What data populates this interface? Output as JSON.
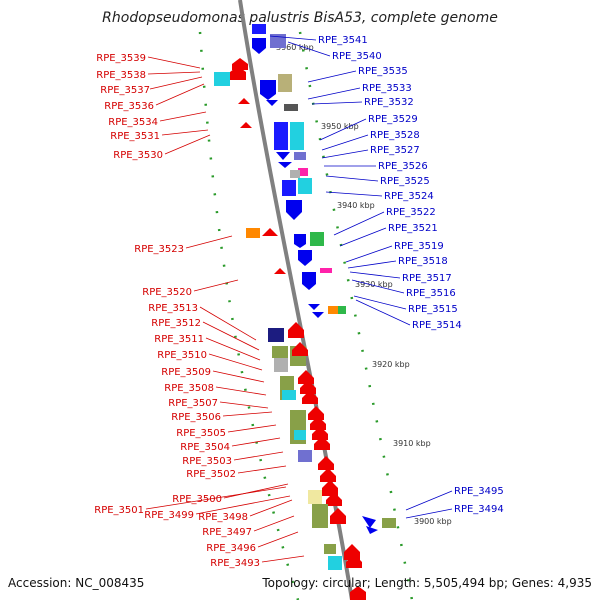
{
  "title": "Rhodopseudomonas palustris BisA53, complete genome",
  "footer": {
    "accession": "Accession: NC_008435",
    "summary": "Topology: circular; Length: 5,505,494 bp; Genes: 4,935"
  },
  "colors": {
    "reverse_strand_label": "#d40000",
    "forward_strand_label": "#0000c8",
    "backbone": "#888888"
  },
  "scale_marks": [
    "3960 kbp",
    "3950 kbp",
    "3940 kbp",
    "3930 kbp",
    "3920 kbp",
    "3910 kbp",
    "3900 kbp"
  ],
  "left_genes": [
    "RPE_3539",
    "RPE_3538",
    "RPE_3537",
    "RPE_3536",
    "RPE_3534",
    "RPE_3531",
    "RPE_3530",
    "RPE_3523",
    "RPE_3520",
    "RPE_3513",
    "RPE_3512",
    "RPE_3511",
    "RPE_3510",
    "RPE_3509",
    "RPE_3508",
    "RPE_3507",
    "RPE_3506",
    "RPE_3505",
    "RPE_3504",
    "RPE_3503",
    "RPE_3502",
    "RPE_3501",
    "RPE_3500",
    "RPE_3499",
    "RPE_3498",
    "RPE_3497",
    "RPE_3496",
    "RPE_3493"
  ],
  "right_genes": [
    "RPE_3541",
    "RPE_3540",
    "RPE_3535",
    "RPE_3533",
    "RPE_3532",
    "RPE_3529",
    "RPE_3528",
    "RPE_3527",
    "RPE_3526",
    "RPE_3525",
    "RPE_3524",
    "RPE_3522",
    "RPE_3521",
    "RPE_3519",
    "RPE_3518",
    "RPE_3517",
    "RPE_3516",
    "RPE_3515",
    "RPE_3514",
    "RPE_3495",
    "RPE_3494"
  ]
}
